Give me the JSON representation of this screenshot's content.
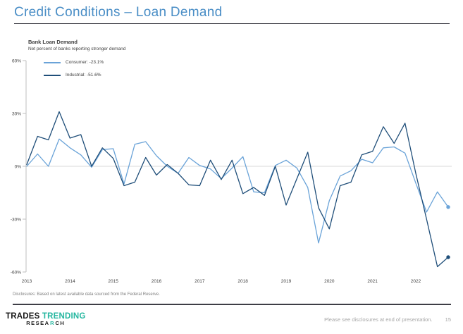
{
  "theme": {
    "title_color": "#4a8ec6",
    "rule_color": "#3e3e46",
    "teal": "#26b7a0",
    "text_dark": "#3f3f3f",
    "muted_gray": "#7f7f7f",
    "footer_gray": "#a6a6a6"
  },
  "page": {
    "title": "Credit Conditions – Loan Demand",
    "footer_disclosure": "Disclosures: Based on latest available data sourced from the Federal Reserve.",
    "footer_note": "Please see disclosures at end of presentation.",
    "page_number": "15",
    "logo": {
      "word1": "TRADES",
      "word2": "TRENDING",
      "research_pre": "RESEA",
      "research_mark": "R",
      "research_post": "CH"
    }
  },
  "chart": {
    "title": "Bank Loan Demand",
    "subtitle": "Net percent of banks reporting stronger demand",
    "legend": [
      {
        "label": "Consumer: -23.1%",
        "color": "#6aa3d8"
      },
      {
        "label": "Industrial: -51.6%",
        "color": "#1f4e79"
      }
    ]
  },
  "chart_data": {
    "type": "line",
    "title": "Bank Loan Demand",
    "subtitle": "Net percent of banks reporting stronger demand",
    "frequency": "quarterly",
    "x_range": [
      "2013-Q1",
      "2022-Q4"
    ],
    "x_tick_labels": [
      "2013",
      "2014",
      "2015",
      "2016",
      "2017",
      "2018",
      "2019",
      "2020",
      "2021",
      "2022"
    ],
    "y_ticks": [
      {
        "label": "60%",
        "value": 60
      },
      {
        "label": "30%",
        "value": 30
      },
      {
        "label": "0%",
        "value": 0
      },
      {
        "label": "-30%",
        "value": -30
      },
      {
        "label": "-60%",
        "value": -60
      }
    ],
    "ylim": [
      -60,
      60
    ],
    "grid": "zero-line-only",
    "legend_position": "top-left",
    "axis_color": "#bfbfbf",
    "gridline_color": "#d9d9d9",
    "end_markers": true,
    "series": [
      {
        "name": "Consumer",
        "latest_value": -23.1,
        "color": "#6aa3d8",
        "values": [
          0,
          7,
          0,
          15.5,
          10.5,
          6.5,
          -0.5,
          9.5,
          10,
          -10,
          12.5,
          14,
          6,
          0,
          -4,
          5,
          0.5,
          -1.5,
          -7,
          -1,
          5.5,
          -14.5,
          -15,
          0.5,
          3.5,
          -1,
          -12,
          -43.5,
          -19.5,
          -5.5,
          -2.5,
          4,
          2,
          10.5,
          11,
          7.5,
          -9.5,
          -26,
          -14.5,
          -23.1
        ]
      },
      {
        "name": "Industrial",
        "latest_value": -51.6,
        "color": "#1f4e79",
        "values": [
          1,
          17,
          15,
          31,
          16,
          18,
          0,
          10.5,
          4.5,
          -11,
          -9,
          5,
          -5,
          1,
          -4,
          -10.5,
          -11,
          3.5,
          -7.5,
          3.5,
          -15.5,
          -12,
          -16.5,
          0,
          -22,
          -7,
          8,
          -23.5,
          -35.5,
          -11,
          -9,
          6.5,
          8.5,
          22.5,
          13,
          24.5,
          -4,
          -30,
          -57,
          -51.6
        ]
      }
    ]
  }
}
